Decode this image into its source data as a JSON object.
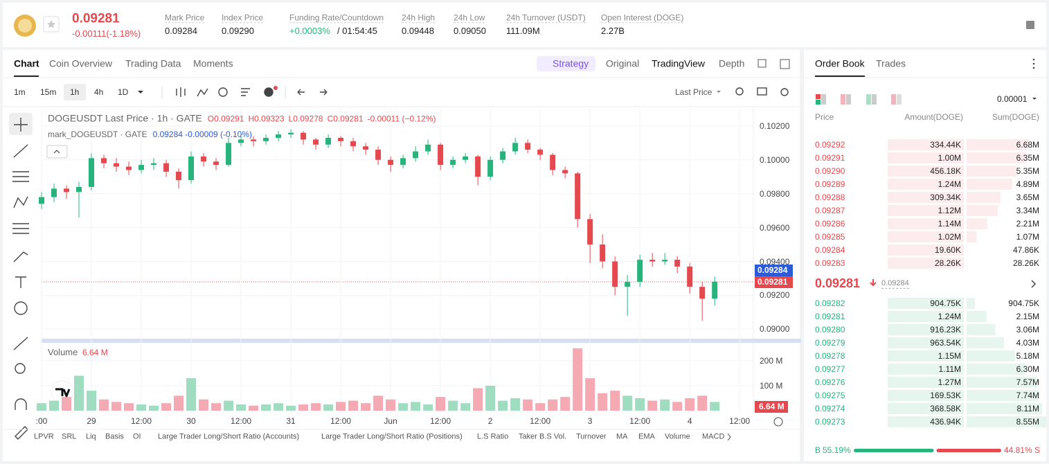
{
  "header": {
    "price": "0.09281",
    "change": "-0.00111(-1.18%)",
    "stats": [
      {
        "label": "Mark Price",
        "value": "0.09284"
      },
      {
        "label": "Index Price",
        "value": "0.09290"
      },
      {
        "label": "Funding Rate/Countdown",
        "value": "+0.0003%",
        "value2": "/ 01:54:45"
      },
      {
        "label": "24h High",
        "value": "0.09448"
      },
      {
        "label": "24h Low",
        "value": "0.09050"
      },
      {
        "label": "24h Turnover (USDT)",
        "value": "111.09M"
      },
      {
        "label": "Open Interest (DOGE)",
        "value": "2.27B"
      }
    ]
  },
  "tabs": [
    "Chart",
    "Coin Overview",
    "Trading Data",
    "Moments"
  ],
  "view_tabs": [
    "Strategy",
    "Original",
    "TradingView",
    "Depth"
  ],
  "toolbar": {
    "intervals": [
      "1m",
      "15m",
      "1h",
      "4h",
      "1D"
    ],
    "price_source": "Last Price"
  },
  "legend": {
    "line1": "DOGEUSDT Last Price · 1h · GATE",
    "ohlc": [
      "O0.09291",
      "H0.09323",
      "L0.09278",
      "C0.09281",
      "-0.00011 (−0.12%)"
    ],
    "line2": "mark_DOGEUSDT · GATE",
    "mark": "0.09284 -0.00009 (-0.10%)"
  },
  "price_tags": [
    "0.09284",
    "0.09281"
  ],
  "chart_data": [
    {
      "type": "candlestick",
      "xlim": [
        -12,
        159.3
      ],
      "ylim": [
        0.0894,
        0.1031
      ],
      "yticks": [
        {
          "value": 0.09,
          "label": "0.09000"
        },
        {
          "value": 0.092,
          "label": "0.09200"
        },
        {
          "value": 0.094,
          "label": "0.09400"
        },
        {
          "value": 0.096,
          "label": "0.09600"
        },
        {
          "value": 0.098,
          "label": "0.09800"
        },
        {
          "value": 0.1,
          "label": "0.10000"
        },
        {
          "value": 0.102,
          "label": "0.10200"
        }
      ],
      "x": [
        -12,
        -9,
        -6,
        -3,
        0,
        3,
        6,
        9,
        12,
        15,
        18,
        21,
        24,
        27,
        30,
        33,
        36,
        39,
        42,
        45,
        48,
        51,
        54,
        57,
        60,
        63,
        66,
        69,
        72,
        75,
        78,
        81,
        84,
        87,
        90,
        93,
        96,
        99,
        102,
        105,
        108,
        111,
        114,
        117,
        120,
        123,
        126,
        129,
        132,
        135,
        138,
        141,
        144,
        147,
        150
      ],
      "open": [
        0.0974,
        0.0978,
        0.0983,
        0.0981,
        0.0984,
        0.1001,
        0.0998,
        0.0996,
        0.0994,
        0.0997,
        0.0998,
        0.0993,
        0.0988,
        0.1002,
        0.0999,
        0.0997,
        0.101,
        0.1012,
        0.1011,
        0.1013,
        0.1015,
        0.1016,
        0.1012,
        0.1009,
        0.1013,
        0.1011,
        0.1008,
        0.1006,
        0.1,
        0.0997,
        0.1001,
        0.1005,
        0.1009,
        0.0997,
        0.1,
        0.1002,
        0.099,
        0.1,
        0.1005,
        0.101,
        0.1006,
        0.1003,
        0.0994,
        0.0992,
        0.0965,
        0.095,
        0.094,
        0.0925,
        0.0928,
        0.0941,
        0.094,
        0.0941,
        0.0937,
        0.0925,
        0.0918
      ],
      "high": [
        0.0981,
        0.0986,
        0.0985,
        0.0987,
        0.1004,
        0.1003,
        0.1001,
        0.0999,
        0.1,
        0.1001,
        0.1,
        0.0995,
        0.1005,
        0.1004,
        0.1001,
        0.1013,
        0.1015,
        0.1014,
        0.1015,
        0.1017,
        0.1018,
        0.1017,
        0.1013,
        0.1015,
        0.1014,
        0.1013,
        0.101,
        0.1008,
        0.1002,
        0.1003,
        0.1008,
        0.1012,
        0.101,
        0.1002,
        0.1004,
        0.1003,
        0.1002,
        0.1007,
        0.1013,
        0.1012,
        0.1007,
        0.1004,
        0.0996,
        0.0993,
        0.0968,
        0.0956,
        0.0943,
        0.0932,
        0.0944,
        0.0945,
        0.0945,
        0.0943,
        0.0939,
        0.0928,
        0.0931
      ],
      "low": [
        0.0971,
        0.0975,
        0.0977,
        0.0966,
        0.0982,
        0.0995,
        0.0993,
        0.0991,
        0.0992,
        0.0994,
        0.099,
        0.0983,
        0.0986,
        0.0996,
        0.0994,
        0.0996,
        0.1008,
        0.1008,
        0.1009,
        0.1011,
        0.1013,
        0.1009,
        0.1006,
        0.1007,
        0.1008,
        0.1005,
        0.1003,
        0.0997,
        0.0993,
        0.0995,
        0.0999,
        0.1003,
        0.0994,
        0.0995,
        0.0998,
        0.0985,
        0.0988,
        0.0998,
        0.1003,
        0.1004,
        0.1,
        0.0991,
        0.0989,
        0.096,
        0.0939,
        0.0936,
        0.092,
        0.0908,
        0.0925,
        0.0937,
        0.0938,
        0.0933,
        0.0921,
        0.0905,
        0.0914
      ],
      "close": [
        0.0978,
        0.0983,
        0.0981,
        0.0984,
        0.1001,
        0.0998,
        0.0996,
        0.0994,
        0.0997,
        0.0998,
        0.0993,
        0.0988,
        0.1002,
        0.0999,
        0.0997,
        0.101,
        0.1012,
        0.1011,
        0.1013,
        0.1015,
        0.1016,
        0.1012,
        0.1009,
        0.1013,
        0.1011,
        0.1008,
        0.1006,
        0.1,
        0.0997,
        0.1001,
        0.1005,
        0.1009,
        0.0997,
        0.1,
        0.1002,
        0.099,
        0.1,
        0.1005,
        0.101,
        0.1006,
        0.1003,
        0.0994,
        0.0992,
        0.0965,
        0.095,
        0.094,
        0.0925,
        0.0928,
        0.0941,
        0.094,
        0.0941,
        0.0937,
        0.0925,
        0.0918,
        0.09281
      ]
    },
    {
      "type": "bar",
      "name": "Volume",
      "legend_value": "6.64 M",
      "xlim": [
        -12,
        159.3
      ],
      "ylim": [
        0,
        258
      ],
      "yticks": [
        {
          "value": 100,
          "label": "100 M"
        },
        {
          "value": 200,
          "label": "200 M"
        }
      ],
      "xticks": [
        {
          "value": -12,
          "label": ":00"
        },
        {
          "value": 0,
          "label": "29"
        },
        {
          "value": 12,
          "label": "12:00"
        },
        {
          "value": 24,
          "label": "30"
        },
        {
          "value": 36,
          "label": "12:00"
        },
        {
          "value": 48,
          "label": "31"
        },
        {
          "value": 60,
          "label": "12:00"
        },
        {
          "value": 72,
          "label": "Jun"
        },
        {
          "value": 84,
          "label": "12:00"
        },
        {
          "value": 96,
          "label": "2"
        },
        {
          "value": 108,
          "label": "12:00"
        },
        {
          "value": 120,
          "label": "3"
        },
        {
          "value": 132,
          "label": "12:00"
        },
        {
          "value": 144,
          "label": "4"
        },
        {
          "value": 156,
          "label": "12:00"
        }
      ],
      "x": [
        -12,
        -9,
        -6,
        -3,
        0,
        3,
        6,
        9,
        12,
        15,
        18,
        21,
        24,
        27,
        30,
        33,
        36,
        39,
        42,
        45,
        48,
        51,
        54,
        57,
        60,
        63,
        66,
        69,
        72,
        75,
        78,
        81,
        84,
        87,
        90,
        93,
        96,
        99,
        102,
        105,
        108,
        111,
        114,
        117,
        120,
        123,
        126,
        129,
        132,
        135,
        138,
        141,
        144,
        147,
        150
      ],
      "values": [
        30,
        40,
        55,
        140,
        80,
        45,
        35,
        30,
        25,
        20,
        30,
        60,
        130,
        45,
        30,
        40,
        25,
        20,
        25,
        30,
        20,
        25,
        30,
        25,
        35,
        40,
        30,
        60,
        45,
        30,
        35,
        25,
        55,
        40,
        30,
        90,
        100,
        40,
        50,
        45,
        30,
        45,
        55,
        250,
        130,
        70,
        80,
        60,
        50,
        40,
        45,
        35,
        50,
        60,
        35
      ]
    }
  ],
  "indicators": [
    "LPVR",
    "SRL",
    "Liq",
    "Basis",
    "OI",
    "Large Trader Long/Short Ratio (Accounts)",
    "Large Trader Long/Short Ratio (Positions)",
    "L.S Ratio",
    "Taker B.S Vol.",
    "Turnover",
    "MA",
    "EMA",
    "Volume",
    "MACD"
  ],
  "order_book": {
    "tabs": [
      "Order Book",
      "Trades"
    ],
    "precision": "0.00001",
    "columns": [
      "Price",
      "Amount(DOGE)",
      "Sum(DOGE)"
    ],
    "asks": [
      [
        "0.09292",
        "334.44K",
        "6.68M"
      ],
      [
        "0.09291",
        "1.00M",
        "6.35M"
      ],
      [
        "0.09290",
        "456.18K",
        "5.35M"
      ],
      [
        "0.09289",
        "1.24M",
        "4.89M"
      ],
      [
        "0.09288",
        "309.34K",
        "3.65M"
      ],
      [
        "0.09287",
        "1.12M",
        "3.34M"
      ],
      [
        "0.09286",
        "1.14M",
        "2.21M"
      ],
      [
        "0.09285",
        "1.02M",
        "1.07M"
      ],
      [
        "0.09284",
        "19.60K",
        "47.86K"
      ],
      [
        "0.09283",
        "28.26K",
        "28.26K"
      ]
    ],
    "last_price": "0.09281",
    "mark_price": "0.09284",
    "bids": [
      [
        "0.09282",
        "904.75K",
        "904.75K"
      ],
      [
        "0.09281",
        "1.24M",
        "2.15M"
      ],
      [
        "0.09280",
        "916.23K",
        "3.06M"
      ],
      [
        "0.09279",
        "963.54K",
        "4.03M"
      ],
      [
        "0.09278",
        "1.15M",
        "5.18M"
      ],
      [
        "0.09277",
        "1.11M",
        "6.30M"
      ],
      [
        "0.09276",
        "1.27M",
        "7.57M"
      ],
      [
        "0.09275",
        "169.53K",
        "7.74M"
      ],
      [
        "0.09274",
        "368.58K",
        "8.11M"
      ],
      [
        "0.09273",
        "436.94K",
        "8.55M"
      ]
    ],
    "ratio": {
      "buy_label": "B",
      "buy": {
        "value": 55.19,
        "label": "55.19%"
      },
      "sell": {
        "value": 44.81,
        "label": "44.81%"
      },
      "sell_label": "S"
    }
  }
}
